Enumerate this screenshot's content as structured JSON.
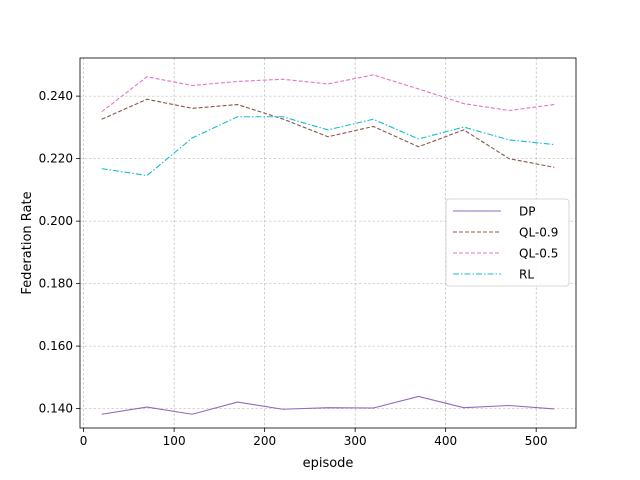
{
  "chart_data": {
    "type": "line",
    "title": "",
    "xlabel": "episode",
    "ylabel": "Federation Rate",
    "xlim": [
      -4,
      544
    ],
    "ylim": [
      0.1338,
      0.2522
    ],
    "xticks": [
      0,
      100,
      200,
      300,
      400,
      500
    ],
    "yticks": [
      0.14,
      0.16,
      0.18,
      0.2,
      0.22,
      0.24
    ],
    "xtick_labels": [
      "0",
      "100",
      "200",
      "300",
      "400",
      "500"
    ],
    "ytick_labels": [
      "0.140",
      "0.160",
      "0.180",
      "0.200",
      "0.220",
      "0.240"
    ],
    "grid": true,
    "legend_position": "center-right",
    "x": [
      20,
      70,
      120,
      170,
      220,
      270,
      320,
      370,
      420,
      470,
      520
    ],
    "series": [
      {
        "name": "DP",
        "color": "#9467bd",
        "style": "solid",
        "values": [
          0.1382,
          0.1405,
          0.1382,
          0.1421,
          0.1398,
          0.1403,
          0.1402,
          0.1439,
          0.1403,
          0.141,
          0.1399
        ]
      },
      {
        "name": "QL-0.9",
        "color": "#8c564b",
        "style": "dashed",
        "values": [
          0.2326,
          0.239,
          0.2361,
          0.2373,
          0.2327,
          0.227,
          0.2303,
          0.2238,
          0.2292,
          0.22,
          0.2172
        ]
      },
      {
        "name": "QL-0.5",
        "color": "#e377c2",
        "style": "dashed",
        "values": [
          0.235,
          0.2462,
          0.2434,
          0.2447,
          0.2454,
          0.2439,
          0.2468,
          0.2423,
          0.2376,
          0.2354,
          0.2373
        ]
      },
      {
        "name": "RL",
        "color": "#17becf",
        "style": "dashdot",
        "values": [
          0.2168,
          0.2146,
          0.2266,
          0.2334,
          0.2334,
          0.2292,
          0.2326,
          0.2263,
          0.2301,
          0.226,
          0.2245
        ]
      }
    ]
  }
}
